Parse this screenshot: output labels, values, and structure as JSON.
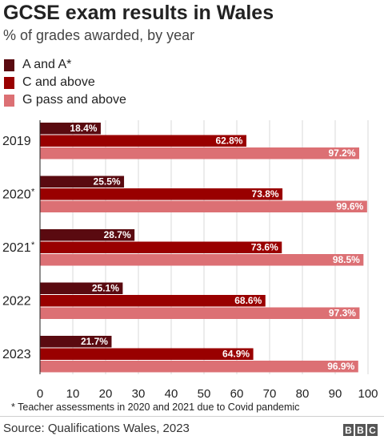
{
  "chart_data": {
    "type": "bar",
    "orientation": "horizontal",
    "title": "GCSE exam results in Wales",
    "subtitle": "% of grades awarded, by year",
    "categories": [
      "2019",
      "2020",
      "2021",
      "2022",
      "2023"
    ],
    "category_markers": [
      "",
      "*",
      "*",
      "",
      ""
    ],
    "series": [
      {
        "name": "A and A*",
        "color": "#5a0a10",
        "values": [
          18.4,
          25.5,
          28.7,
          25.1,
          21.7
        ],
        "labels": [
          "18.4%",
          "25.5%",
          "28.7%",
          "25.1%",
          "21.7%"
        ]
      },
      {
        "name": "C and above",
        "color": "#990000",
        "values": [
          62.8,
          73.8,
          73.6,
          68.6,
          64.9
        ],
        "labels": [
          "62.8%",
          "73.8%",
          "73.6%",
          "68.6%",
          "64.9%"
        ]
      },
      {
        "name": "G pass and above",
        "color": "#dc7074",
        "values": [
          97.2,
          99.6,
          98.5,
          97.3,
          96.9
        ],
        "labels": [
          "97.2%",
          "99.6%",
          "98.5%",
          "97.3%",
          "96.9%"
        ]
      }
    ],
    "xlim": [
      0,
      100
    ],
    "xticks": [
      0,
      10,
      20,
      30,
      40,
      50,
      60,
      70,
      80,
      90,
      100
    ],
    "xlabel": "",
    "ylabel": "",
    "grid": true,
    "legend_position": "top-left"
  },
  "footnote": "* Teacher assessments in 2020 and 2021 due to Covid pandemic",
  "source": "Source: Qualifications Wales, 2023",
  "logo": [
    "B",
    "B",
    "C"
  ]
}
